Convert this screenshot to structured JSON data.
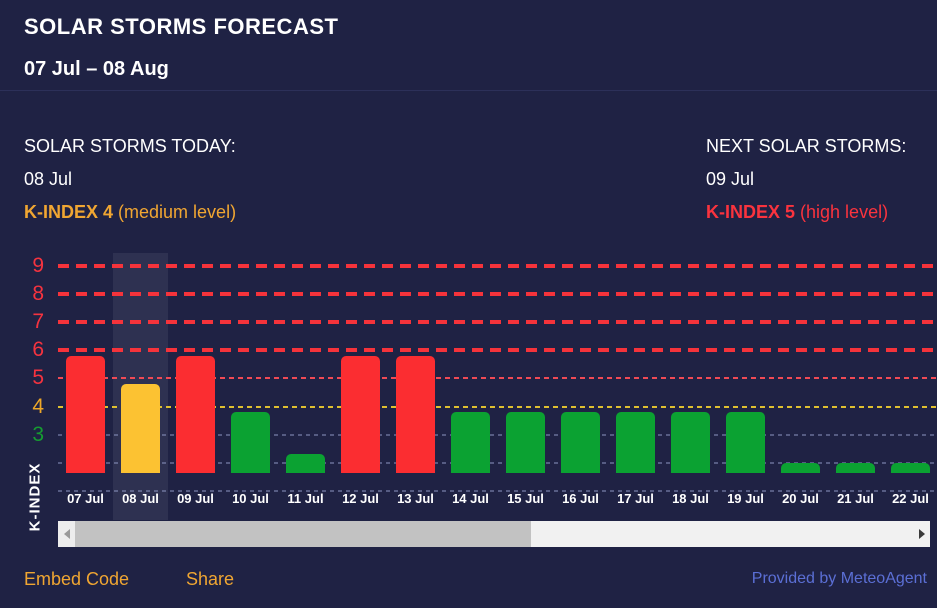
{
  "header": {
    "title": "SOLAR STORMS FORECAST",
    "date_range": "07 Jul – 08 Aug"
  },
  "today": {
    "heading": "SOLAR STORMS TODAY:",
    "date": "08 Jul",
    "kindex_label": "K-INDEX 4",
    "kindex_note": "(medium level)"
  },
  "next": {
    "heading": "NEXT SOLAR STORMS:",
    "date": "09 Jul",
    "kindex_label": "K-INDEX 5",
    "kindex_note": "(high level)"
  },
  "chart_data": {
    "type": "bar",
    "title": "SOLAR STORMS FORECAST",
    "xlabel": "",
    "ylabel": "K-INDEX",
    "categories": [
      "07 Jul",
      "08 Jul",
      "09 Jul",
      "10 Jul",
      "11 Jul",
      "12 Jul",
      "13 Jul",
      "14 Jul",
      "15 Jul",
      "16 Jul",
      "17 Jul",
      "18 Jul",
      "19 Jul",
      "20 Jul",
      "21 Jul",
      "22 Jul"
    ],
    "values": [
      5.8,
      4.8,
      5.8,
      3.8,
      2.3,
      5.8,
      5.8,
      3.8,
      3.8,
      3.8,
      3.8,
      3.8,
      3.8,
      2,
      2,
      2
    ],
    "levels": [
      "high",
      "medium",
      "high",
      "low",
      "low",
      "high",
      "high",
      "low",
      "low",
      "low",
      "low",
      "low",
      "low",
      "low",
      "low",
      "low"
    ],
    "level_colors": {
      "high": "#fb2d31",
      "medium": "#fcc232",
      "low": "#0ba232"
    },
    "highlighted_category": "08 Jul",
    "ylim": [
      1.5,
      9.5
    ],
    "grid": true,
    "legend_position": "none",
    "yticks": [
      {
        "value": 9,
        "label": "9",
        "label_color": "#f5333f",
        "line": "heavy-red"
      },
      {
        "value": 8,
        "label": "8",
        "label_color": "#f5333f",
        "line": "heavy-red"
      },
      {
        "value": 7,
        "label": "7",
        "label_color": "#f5333f",
        "line": "heavy-red"
      },
      {
        "value": 6,
        "label": "6",
        "label_color": "#f5333f",
        "line": "heavy-red"
      },
      {
        "value": 5,
        "label": "5",
        "label_color": "#f5333f",
        "line": "thin-red"
      },
      {
        "value": 4,
        "label": "4",
        "label_color": "#eda728",
        "line": "thin-yellow"
      },
      {
        "value": 3,
        "label": "3",
        "label_color": "#169c31",
        "line": "faint"
      },
      {
        "value": 2,
        "label": "",
        "label_color": "",
        "line": "faint"
      },
      {
        "value": 1,
        "label": "",
        "label_color": "",
        "line": "faint"
      }
    ]
  },
  "footer": {
    "embed_label": "Embed Code",
    "share_label": "Share",
    "provided_label": "Provided by MeteoAgent"
  },
  "colors": {
    "background": "#1f2244",
    "accent_orange": "#f0a632",
    "accent_red": "#fa333e",
    "provided_blue": "#5b6fd5",
    "highlight_column": "rgba(255,255,255,0.07)"
  }
}
